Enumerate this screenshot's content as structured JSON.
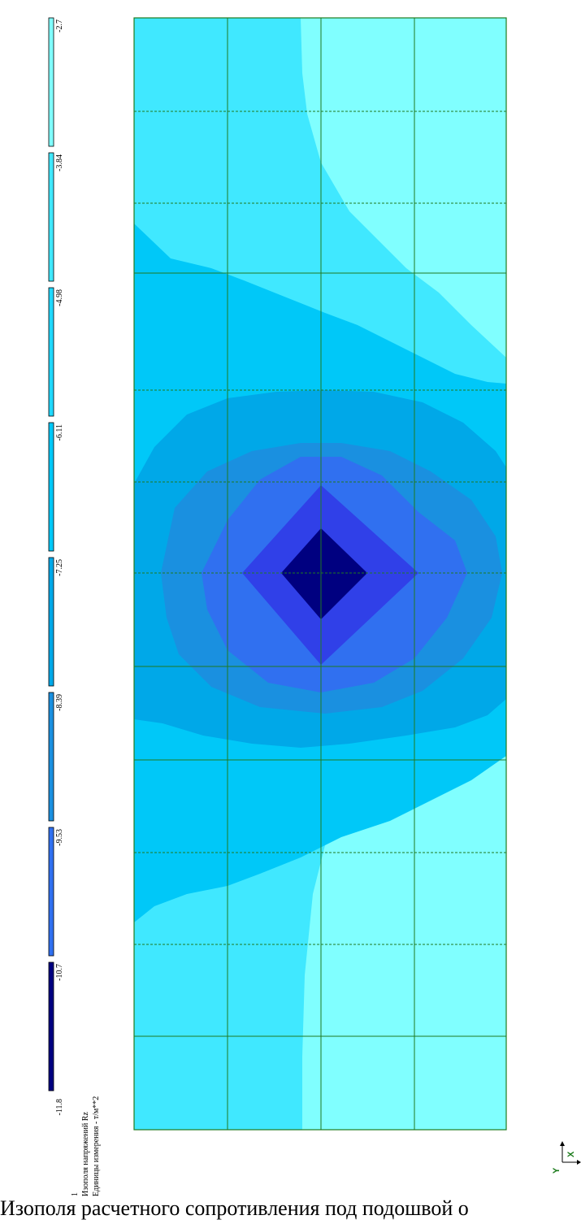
{
  "legend": {
    "values": [
      "-2.7",
      "-3.84",
      "-4.98",
      "-6.11",
      "-7.25",
      "-8.39",
      "-9.53",
      "-10.7",
      "-11.8"
    ],
    "colors": [
      "#80ffff",
      "#40e8ff",
      "#20d8ff",
      "#00c8f8",
      "#00a8e8",
      "#1a90e0",
      "#3070f0",
      "#3040e8",
      "#000080"
    ],
    "number": "1",
    "title": "Изополя напряжений Rz",
    "units": "Единицы измерения - т/м**2"
  },
  "axes": {
    "y_label": "Y",
    "x_label": "X"
  },
  "caption": "Изополя расчетного сопротивления под подошвой о",
  "plot": {
    "grid_color": "#1f7a1f",
    "zone_colors": {
      "outer": "#80ffff",
      "z1": "#40e8ff",
      "z2": "#00c8f8",
      "z3": "#00a8e8",
      "z4": "#1a90e0",
      "z5": "#3070f0",
      "z6": "#3040e8",
      "core": "#000080"
    }
  }
}
